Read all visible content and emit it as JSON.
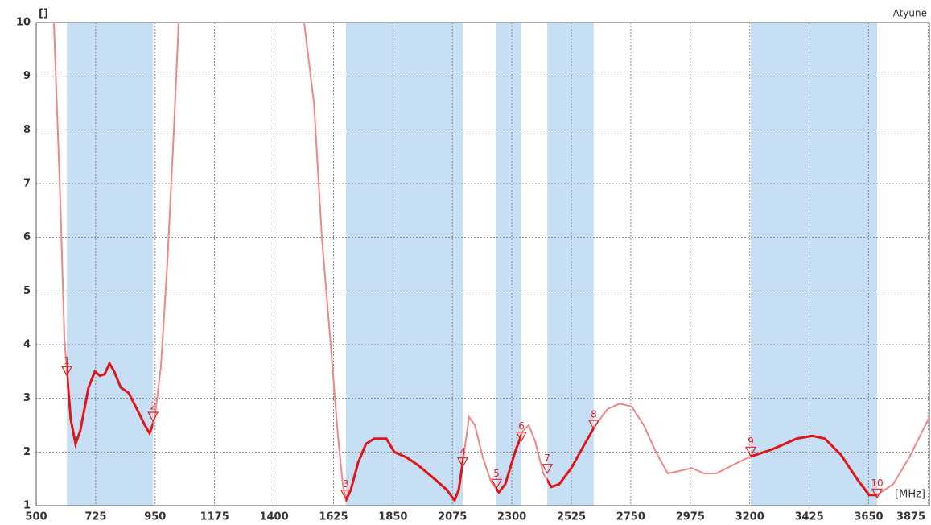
{
  "chart_data": {
    "type": "line",
    "y_unit": "[]",
    "x_unit": "[MHz]",
    "corner_label": "Atyune",
    "x": [
      567,
      591,
      607,
      616,
      631,
      649,
      667,
      698,
      722,
      741,
      759,
      777,
      795,
      820,
      850,
      881,
      911,
      929,
      948,
      972,
      996,
      1021,
      1039,
      null,
      1514,
      1551,
      1581,
      1611,
      1642,
      1660,
      1672,
      1691,
      1718,
      1748,
      1779,
      1825,
      1855,
      1901,
      1946,
      2007,
      2053,
      2083,
      2099,
      2117,
      2138,
      2160,
      2190,
      2221,
      2251,
      2275,
      2312,
      2342,
      2364,
      2388,
      2419,
      2449,
      2479,
      2525,
      2570,
      2616,
      2662,
      2708,
      2753,
      2799,
      2845,
      2890,
      2936,
      2982,
      3027,
      3073,
      3134,
      3195,
      3286,
      3378,
      3438,
      3484,
      3545,
      3606,
      3652,
      3682,
      3743,
      3804,
      3880
    ],
    "series": [
      {
        "color": "#f28585",
        "band_color": "#e01515",
        "values": [
          10,
          6.7,
          4.1,
          3.5,
          2.6,
          2.15,
          2.4,
          3.2,
          3.5,
          3.42,
          3.45,
          3.65,
          3.5,
          3.2,
          3.1,
          2.8,
          2.5,
          2.35,
          2.6,
          3.6,
          5.5,
          8,
          10,
          null,
          10,
          8.5,
          6,
          4.2,
          2.3,
          1.4,
          1.1,
          1.3,
          1.8,
          2.15,
          2.25,
          2.25,
          2.0,
          1.9,
          1.75,
          1.5,
          1.3,
          1.1,
          1.3,
          1.9,
          2.65,
          2.5,
          1.9,
          1.45,
          1.25,
          1.4,
          2.0,
          2.4,
          2.5,
          2.2,
          1.6,
          1.35,
          1.4,
          1.7,
          2.1,
          2.5,
          2.8,
          2.9,
          2.85,
          2.5,
          2.0,
          1.6,
          1.65,
          1.7,
          1.6,
          1.6,
          1.75,
          1.9,
          2.05,
          2.25,
          2.3,
          2.25,
          1.95,
          1.5,
          1.2,
          1.2,
          1.4,
          1.9,
          2.65
        ]
      }
    ],
    "bands": [
      [
        616,
        942
      ],
      [
        1672,
        2114
      ],
      [
        2239,
        2336
      ],
      [
        2434,
        2610
      ],
      [
        3204,
        3682
      ]
    ],
    "bands_color": "#c6dff5",
    "markers": [
      {
        "label": "1",
        "x": 616,
        "y": 3.5
      },
      {
        "label": "2",
        "x": 942,
        "y": 2.65
      },
      {
        "label": "3",
        "x": 1672,
        "y": 1.2
      },
      {
        "label": "4",
        "x": 2114,
        "y": 1.8
      },
      {
        "label": "5",
        "x": 2242,
        "y": 1.4
      },
      {
        "label": "6",
        "x": 2336,
        "y": 2.28
      },
      {
        "label": "7",
        "x": 2434,
        "y": 1.68
      },
      {
        "label": "8",
        "x": 2610,
        "y": 2.5
      },
      {
        "label": "9",
        "x": 3204,
        "y": 2.0
      },
      {
        "label": "10",
        "x": 3682,
        "y": 1.22
      }
    ],
    "xlim": [
      500,
      3880
    ],
    "ylim": [
      1,
      10
    ],
    "xticks": [
      500,
      725,
      950,
      1175,
      1400,
      1625,
      1850,
      2075,
      2300,
      2525,
      2750,
      2975,
      3200,
      3425,
      3650,
      3875
    ],
    "yticks": [
      1,
      2,
      3,
      4,
      5,
      6,
      7,
      8,
      9,
      10
    ],
    "grid": true
  }
}
